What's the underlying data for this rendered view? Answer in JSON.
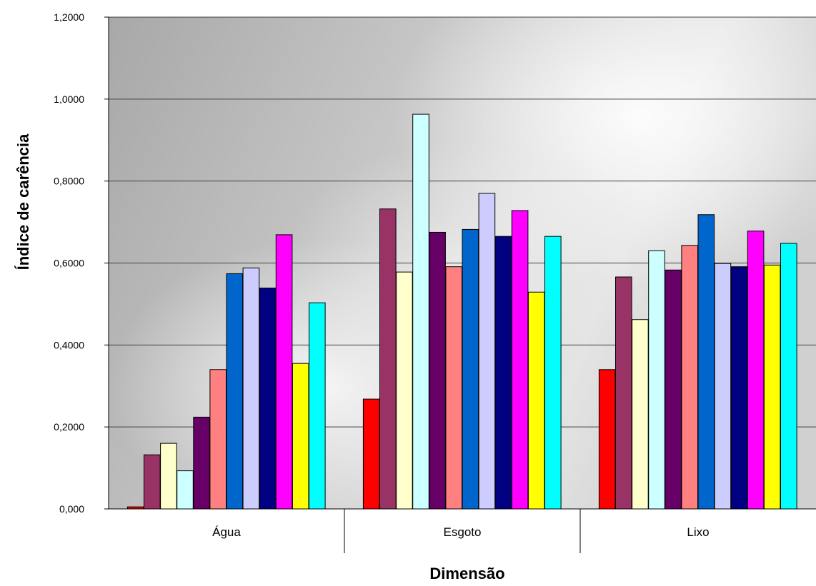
{
  "chart_data": {
    "type": "bar",
    "title": "",
    "xlabel": "Dimensão",
    "ylabel": "Índice de carência",
    "ylim": [
      0,
      1.2
    ],
    "yticks": [
      "0,000",
      "0,2000",
      "0,4000",
      "0,6000",
      "0,8000",
      "1,0000",
      "1,2000"
    ],
    "grid": true,
    "legend": "none",
    "categories": [
      "Água",
      "Esgoto",
      "Lixo"
    ],
    "series": [
      {
        "color": "#ff0000",
        "values": [
          0.005,
          0.268,
          0.34
        ]
      },
      {
        "color": "#993366",
        "values": [
          0.132,
          0.732,
          0.566
        ]
      },
      {
        "color": "#ffffcc",
        "values": [
          0.16,
          0.578,
          0.462
        ]
      },
      {
        "color": "#ccffff",
        "values": [
          0.093,
          0.963,
          0.63
        ]
      },
      {
        "color": "#660066",
        "values": [
          0.224,
          0.675,
          0.583
        ]
      },
      {
        "color": "#ff8080",
        "values": [
          0.34,
          0.591,
          0.643
        ]
      },
      {
        "color": "#0066cc",
        "values": [
          0.574,
          0.682,
          0.718
        ]
      },
      {
        "color": "#ccccff",
        "values": [
          0.588,
          0.77,
          0.599
        ]
      },
      {
        "color": "#000080",
        "values": [
          0.539,
          0.665,
          0.591
        ]
      },
      {
        "color": "#ff00ff",
        "values": [
          0.669,
          0.728,
          0.678
        ]
      },
      {
        "color": "#ffff00",
        "values": [
          0.355,
          0.529,
          0.595
        ]
      },
      {
        "color": "#00ffff",
        "values": [
          0.503,
          0.665,
          0.648
        ]
      }
    ]
  }
}
